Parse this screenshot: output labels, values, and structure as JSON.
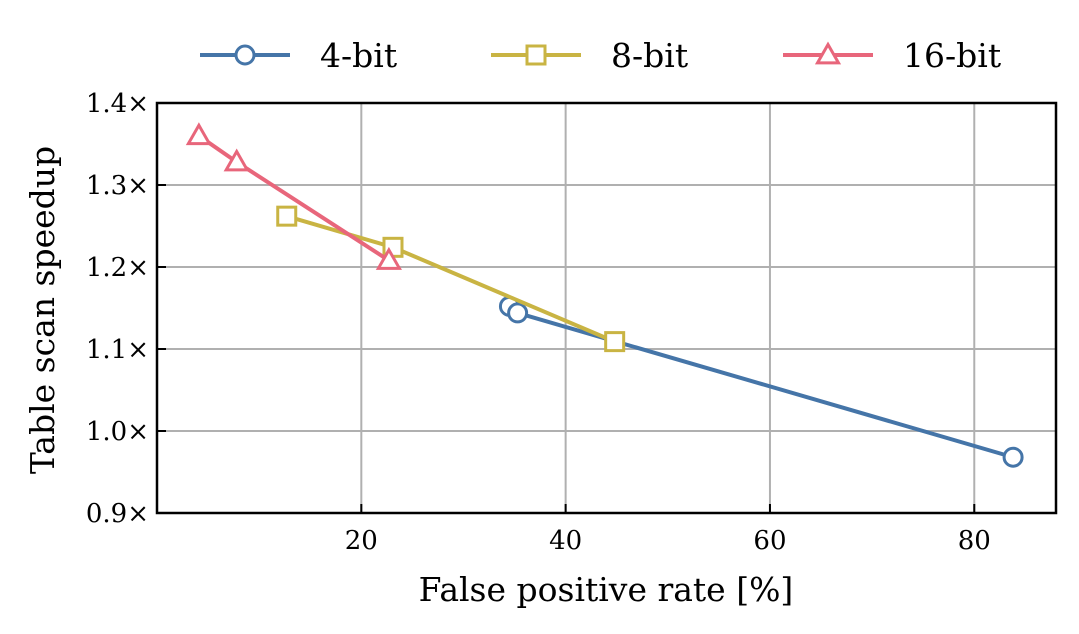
{
  "chart_data": {
    "type": "line",
    "title": "",
    "xlabel": "False positive rate [%]",
    "ylabel": "Table scan speedup",
    "xlim": [
      0,
      88
    ],
    "ylim": [
      0.9,
      1.4
    ],
    "xticks": [
      20,
      40,
      60,
      80
    ],
    "yticks": [
      0.9,
      1.0,
      1.1,
      1.2,
      1.3,
      1.4
    ],
    "x_tick_labels": [
      "20",
      "40",
      "60",
      "80"
    ],
    "y_tick_labels": [
      "0.9×",
      "1.0×",
      "1.1×",
      "1.2×",
      "1.3×",
      "1.4×"
    ],
    "grid": true,
    "legend_position": "top, outside plot",
    "series": [
      {
        "name": "4-bit",
        "color": "#4575a8",
        "marker": "circle",
        "points": [
          {
            "x": 34.5,
            "y": 1.152
          },
          {
            "x": 35.3,
            "y": 1.144
          },
          {
            "x": 83.8,
            "y": 0.968
          }
        ]
      },
      {
        "name": "8-bit",
        "color": "#c9b443",
        "marker": "square",
        "points": [
          {
            "x": 12.7,
            "y": 1.262
          },
          {
            "x": 23.1,
            "y": 1.224
          },
          {
            "x": 44.8,
            "y": 1.109
          }
        ]
      },
      {
        "name": "16-bit",
        "color": "#e8667b",
        "marker": "triangle",
        "points": [
          {
            "x": 4.1,
            "y": 1.36
          },
          {
            "x": 7.8,
            "y": 1.328
          },
          {
            "x": 22.7,
            "y": 1.208
          }
        ]
      }
    ]
  }
}
